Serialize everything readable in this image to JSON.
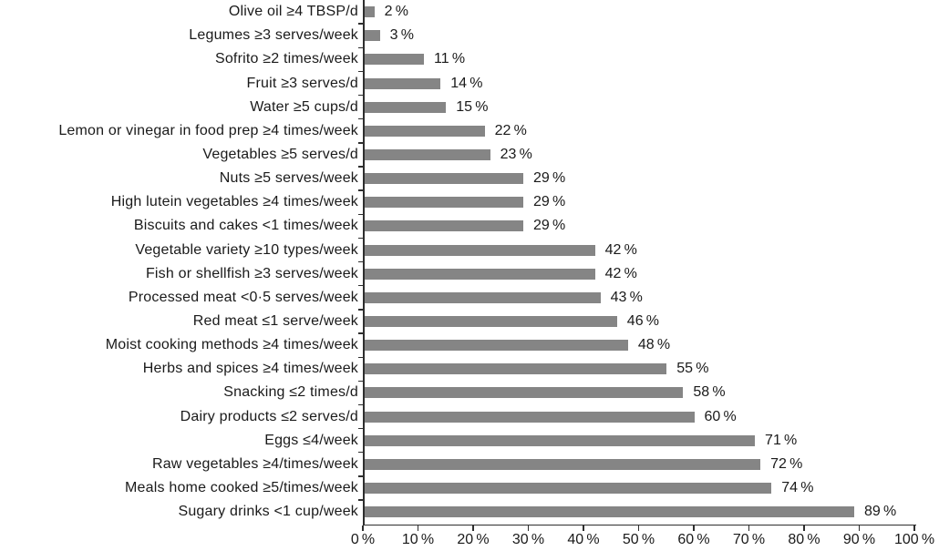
{
  "figure": {
    "background": "#ffffff",
    "bar_color": "#858585",
    "axis_color": "#2e2e2e",
    "text_color": "#1a1a1a"
  },
  "chart_data": {
    "type": "bar",
    "orientation": "horizontal",
    "title": "",
    "xlabel": "",
    "ylabel": "",
    "xlim": [
      0,
      100
    ],
    "x_tick_step": 10,
    "grid": false,
    "legend_position": "none",
    "categories": [
      "Olive oil ≥4 TBSP/d",
      "Legumes ≥3 serves/week",
      "Sofrito ≥2 times/week",
      "Fruit ≥3 serves/d",
      "Water ≥5 cups/d",
      "Lemon or vinegar in food prep ≥4 times/week",
      "Vegetables ≥5 serves/d",
      "Nuts ≥5 serves/week",
      "High lutein vegetables ≥4 times/week",
      "Biscuits and cakes <1 times/week",
      "Vegetable variety ≥10 types/week",
      "Fish or shellfish ≥3 serves/week",
      "Processed meat <0·5 serves/week",
      "Red meat ≤1 serve/week",
      "Moist cooking methods ≥4 times/week",
      "Herbs and spices ≥4 times/week",
      "Snacking ≤2 times/d",
      "Dairy products ≤2 serves/d",
      "Eggs ≤4/week",
      "Raw vegetables ≥4/times/week",
      "Meals home cooked ≥5/times/week",
      "Sugary drinks <1 cup/week"
    ],
    "values": [
      2,
      3,
      11,
      14,
      15,
      22,
      23,
      29,
      29,
      29,
      42,
      42,
      43,
      46,
      48,
      55,
      58,
      60,
      71,
      72,
      74,
      89
    ],
    "value_labels": [
      "2 %",
      "3 %",
      "11 %",
      "14 %",
      "15 %",
      "22 %",
      "23 %",
      "29 %",
      "29 %",
      "29 %",
      "42 %",
      "42 %",
      "43 %",
      "46 %",
      "48 %",
      "55 %",
      "58 %",
      "60 %",
      "71 %",
      "72 %",
      "74 %",
      "89 %"
    ],
    "x_tick_labels": [
      "0 %",
      "10 %",
      "20 %",
      "30 %",
      "40 %",
      "50 %",
      "60 %",
      "70 %",
      "80 %",
      "90 %",
      "100 %"
    ]
  }
}
